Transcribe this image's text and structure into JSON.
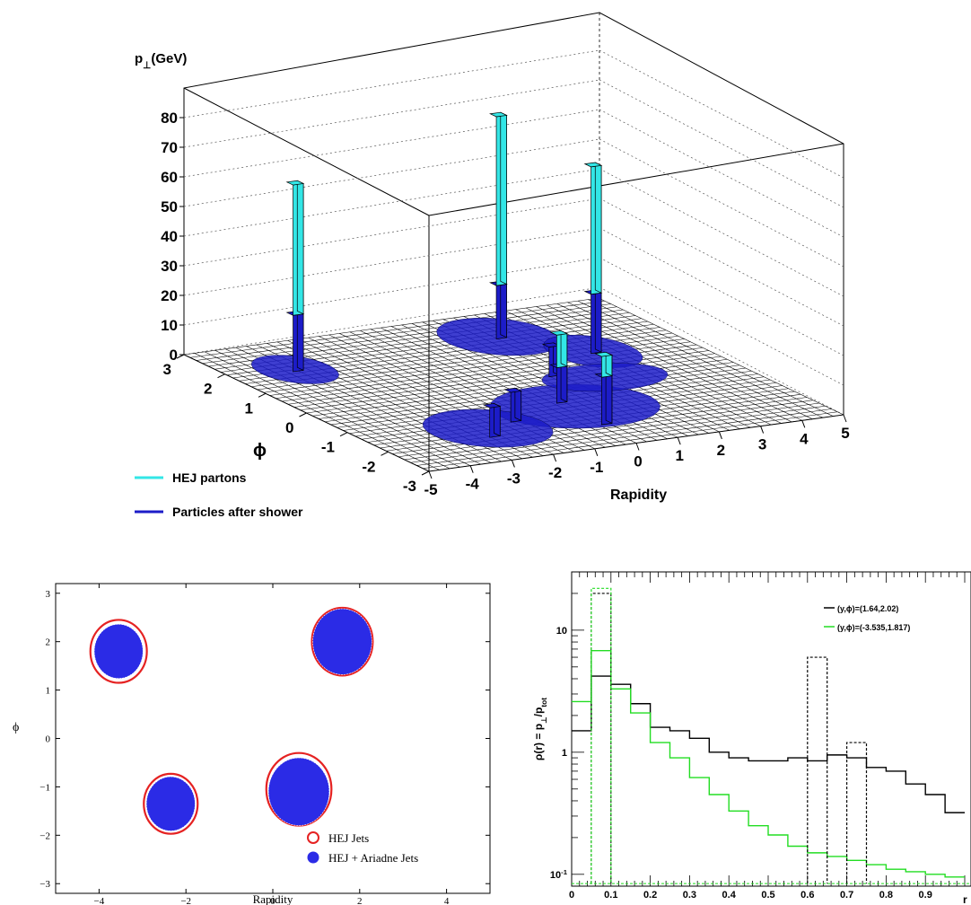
{
  "chart_data": [
    {
      "type": "lego3d",
      "zlabel": "p_{⊥}(GeV)",
      "xlabel": "Rapidity",
      "ylabel": "ϕ",
      "zlim": [
        0,
        85
      ],
      "z_ticks": [
        "0",
        "10",
        "20",
        "30",
        "40",
        "50",
        "60",
        "70",
        "80"
      ],
      "x_ticks": [
        "-5",
        "-4",
        "-3",
        "-2",
        "-1",
        "0",
        "1",
        "2",
        "3",
        "4",
        "5"
      ],
      "y_ticks": [
        "-3",
        "-2",
        "-1",
        "0",
        "1",
        "2",
        "3"
      ],
      "grid": true,
      "legend_position": "bottom-left",
      "series": [
        {
          "name": "HEJ partons",
          "color": "#33e6e6"
        },
        {
          "name": "Particles after shower",
          "color": "#1c1cc8"
        }
      ],
      "towers": [
        {
          "x": -3.5,
          "y": 1.8,
          "partons": 63,
          "shower": 19
        },
        {
          "x": 1.6,
          "y": 2.0,
          "partons": 75,
          "shower": 18
        },
        {
          "x": 2.8,
          "y": 0.9,
          "partons": 63,
          "shower": 20
        },
        {
          "x": 0.2,
          "y": -0.9,
          "partons": 23,
          "shower": 12
        },
        {
          "x": 0.2,
          "y": -2.0,
          "partons": 23,
          "shower": 16
        },
        {
          "x": -2.4,
          "y": -1.9,
          "partons": 10,
          "shower": 10
        },
        {
          "x": -1.4,
          "y": -1.4,
          "partons": 10,
          "shower": 10
        },
        {
          "x": 1.1,
          "y": 0.2,
          "partons": 10,
          "shower": 10
        }
      ]
    },
    {
      "type": "scatter",
      "xlabel": "Rapidity",
      "ylabel": "ϕ",
      "xlim": [
        -5,
        5
      ],
      "ylim": [
        -3.2,
        3.2
      ],
      "x_ticks": [
        "−4",
        "−2",
        "0",
        "2",
        "4"
      ],
      "y_ticks": [
        "−3",
        "−2",
        "−1",
        "0",
        "1",
        "2",
        "3"
      ],
      "legend_position": "bottom-right",
      "series": [
        {
          "name": "HEJ Jets",
          "color": "#e52222",
          "jets": [
            {
              "y": -3.55,
              "phi": 1.8,
              "r": 0.65
            },
            {
              "y": 1.6,
              "phi": 2.0,
              "r": 0.7
            },
            {
              "y": -2.35,
              "phi": -1.35,
              "r": 0.62
            },
            {
              "y": 0.6,
              "phi": -1.05,
              "r": 0.75
            }
          ]
        },
        {
          "name": "HEJ + Ariadne Jets",
          "color": "#2b2be6",
          "jets": [
            {
              "y": -3.55,
              "phi": 1.8,
              "r": 0.56
            },
            {
              "y": 1.6,
              "phi": 2.0,
              "r": 0.68
            },
            {
              "y": -2.35,
              "phi": -1.35,
              "r": 0.56
            },
            {
              "y": 0.6,
              "phi": -1.1,
              "r": 0.7
            }
          ]
        }
      ]
    },
    {
      "type": "line",
      "ylabel": "ρ(r) = p_{⊥}/p_{tot}",
      "xlabel": "r",
      "log_y": true,
      "xlim": [
        0,
        1.0
      ],
      "ylim": [
        0.08,
        30
      ],
      "x_ticks": [
        "0",
        "0.1",
        "0.2",
        "0.3",
        "0.4",
        "0.5",
        "0.6",
        "0.7",
        "0.8",
        "0.9"
      ],
      "y_ticks": [
        "10^{-1}",
        "1",
        "10"
      ],
      "legend_position": "top-right",
      "bin_edges": [
        0,
        0.05,
        0.1,
        0.15,
        0.2,
        0.25,
        0.3,
        0.35,
        0.4,
        0.45,
        0.5,
        0.55,
        0.6,
        0.65,
        0.7,
        0.75,
        0.8,
        0.85,
        0.9,
        0.95,
        1.0
      ],
      "series": [
        {
          "name": "(y,ϕ)=(1.64,2.02)",
          "color": "#000000",
          "values": [
            1.5,
            4.2,
            3.6,
            2.5,
            1.6,
            1.5,
            1.3,
            1.0,
            0.9,
            0.85,
            0.85,
            0.9,
            0.85,
            0.95,
            0.9,
            0.75,
            0.7,
            0.55,
            0.45,
            0.32
          ]
        },
        {
          "name": "(y,ϕ)=(-3.535,1.817)",
          "color": "#22dd22",
          "values": [
            2.6,
            6.8,
            3.3,
            2.1,
            1.2,
            0.9,
            0.62,
            0.45,
            0.33,
            0.25,
            0.21,
            0.17,
            0.15,
            0.14,
            0.13,
            0.12,
            0.11,
            0.105,
            0.1,
            0.095
          ]
        }
      ],
      "partons_dashed": [
        {
          "color": "#000000",
          "r": 0.05,
          "value": 20
        },
        {
          "color": "#000000",
          "r": 0.6,
          "value": 6
        },
        {
          "color": "#000000",
          "r": 0.7,
          "value": 1.2
        },
        {
          "color": "#22dd22",
          "r": 0.05,
          "value": 22
        }
      ]
    }
  ]
}
